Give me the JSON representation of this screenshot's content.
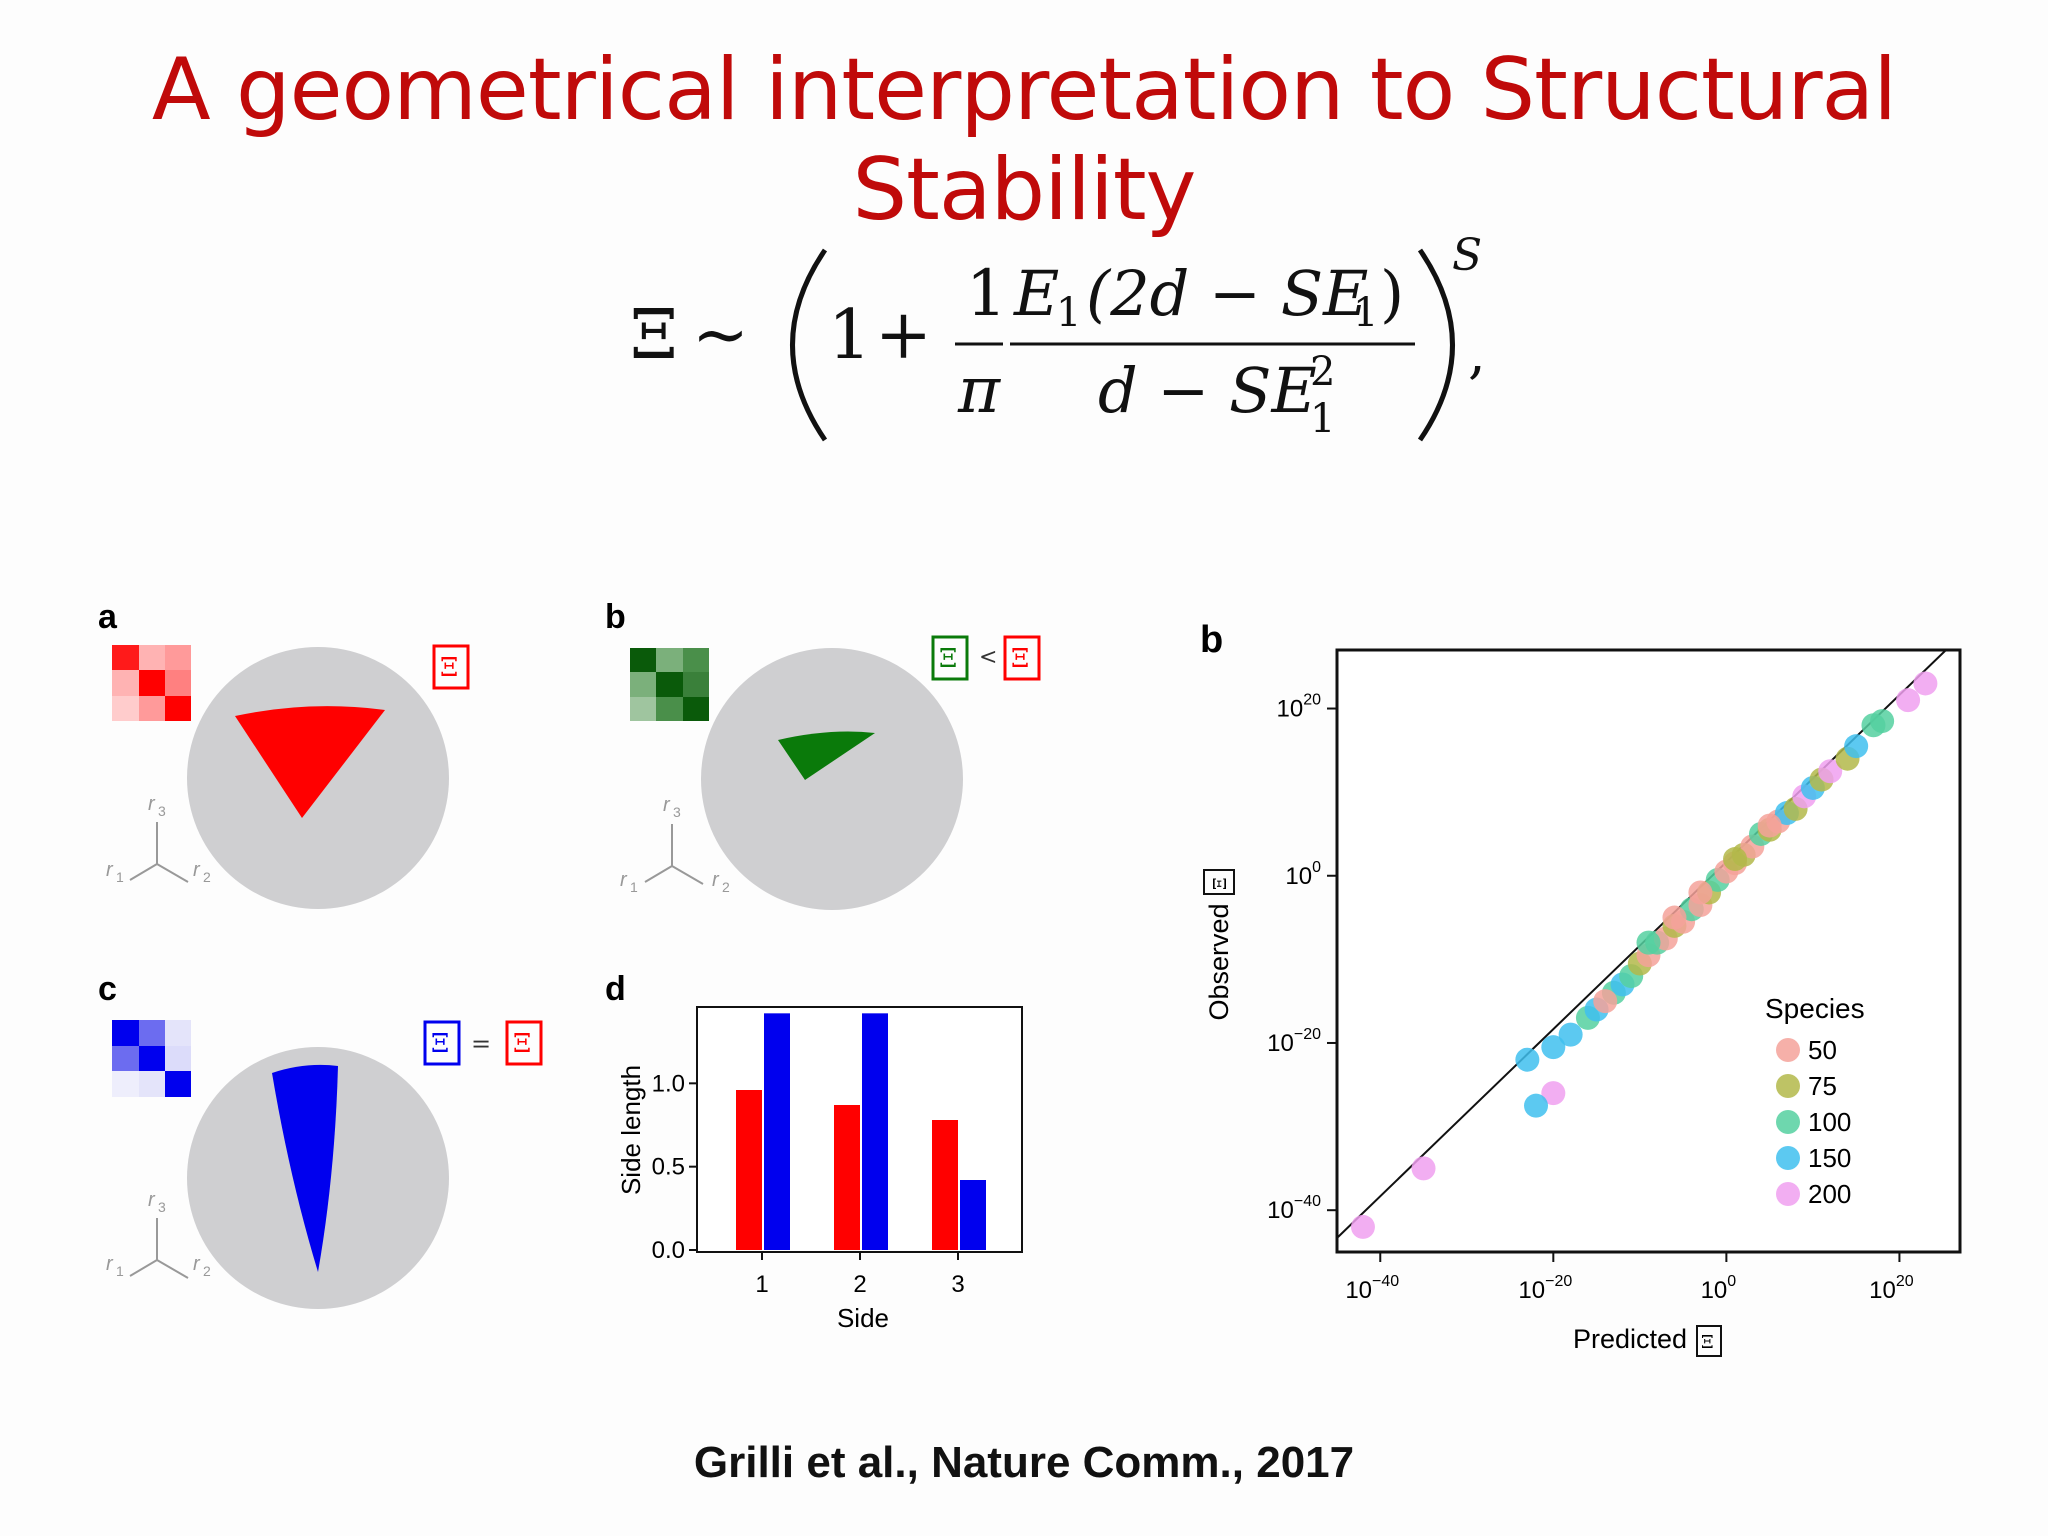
{
  "slide": {
    "title": "A geometrical interpretation to Structural Stability",
    "citation": "Grilli et al., Nature Comm., 2017"
  },
  "formula": {
    "xi": "Ξ",
    "sim": "~",
    "one": "1",
    "plus": "+",
    "frac1_num": "1",
    "frac1_den": "π",
    "frac2_num_a": "E",
    "frac2_num_a_sub": "1",
    "frac2_num_b": "(2d − SE",
    "frac2_num_b_sub": "1",
    "frac2_num_close": ")",
    "frac2_den_a": "d − SE",
    "frac2_den_sup": "2",
    "frac2_den_sub": "1",
    "exponent": "S",
    "comma": ","
  },
  "panels": {
    "a": {
      "label": "a",
      "right_symbol": "Ξ",
      "color": "#ff0000"
    },
    "b": {
      "label": "b",
      "left_symbol": "Ξ",
      "op": "<",
      "right_symbol": "Ξ",
      "color": "#0a7a0a"
    },
    "c": {
      "label": "c",
      "left_symbol": "Ξ",
      "op": "=",
      "right_symbol": "Ξ",
      "color": "#0000ee"
    },
    "d": {
      "label": "d"
    },
    "scatter": {
      "label": "b"
    },
    "axes_small": {
      "r1": "r",
      "r1_sub": "1",
      "r2": "r",
      "r2_sub": "2",
      "r3": "r",
      "r3_sub": "3"
    }
  },
  "chart_data": [
    {
      "type": "bar",
      "panel": "d",
      "xlabel": "Side",
      "ylabel": "Side length",
      "categories": [
        "1",
        "2",
        "3"
      ],
      "yticks": [
        "0.0",
        "0.5",
        "1.0"
      ],
      "ylim": [
        0,
        1.5
      ],
      "series": [
        {
          "values": [
            0.96,
            0.87,
            0.78
          ],
          "color": "#ff0000"
        },
        {
          "values": [
            1.42,
            1.42,
            0.42
          ],
          "color": "#0000ee"
        }
      ]
    },
    {
      "type": "scatter",
      "panel": "b",
      "xlabel": "Predicted",
      "xlabel_symbol": "Ξ",
      "ylabel": "Observed",
      "ylabel_symbol": "Ξ",
      "xscale": "log",
      "yscale": "log",
      "xticks": [
        {
          "base": "10",
          "exp": "−40"
        },
        {
          "base": "10",
          "exp": "−20"
        },
        {
          "base": "10",
          "exp": "0"
        },
        {
          "base": "10",
          "exp": "20"
        }
      ],
      "yticks": [
        {
          "base": "10",
          "exp": "20"
        },
        {
          "base": "10",
          "exp": "0"
        },
        {
          "base": "10",
          "exp": "−20"
        },
        {
          "base": "10",
          "exp": "−40"
        }
      ],
      "xlim_log10": [
        -45,
        27
      ],
      "ylim_log10": [
        -45,
        27
      ],
      "legend": {
        "title": "Species",
        "placement": "bottom-right",
        "entries": [
          {
            "label": "50",
            "color": "#f4a29a"
          },
          {
            "label": "75",
            "color": "#b3b84a"
          },
          {
            "label": "100",
            "color": "#55d0a0"
          },
          {
            "label": "150",
            "color": "#40c0ee"
          },
          {
            "label": "200",
            "color": "#f0a0f0"
          }
        ]
      },
      "points_log10": [
        {
          "x": -42,
          "y": -42,
          "g": 4
        },
        {
          "x": -35,
          "y": -35,
          "g": 4
        },
        {
          "x": -20,
          "y": -26,
          "g": 4
        },
        {
          "x": -22,
          "y": -27.5,
          "g": 3
        },
        {
          "x": -23,
          "y": -22,
          "g": 3
        },
        {
          "x": -20,
          "y": -20.5,
          "g": 3
        },
        {
          "x": -18,
          "y": -19,
          "g": 3
        },
        {
          "x": -16,
          "y": -17,
          "g": 2
        },
        {
          "x": -15,
          "y": -16,
          "g": 3
        },
        {
          "x": -13,
          "y": -14,
          "g": 2
        },
        {
          "x": -12,
          "y": -13,
          "g": 3
        },
        {
          "x": -11,
          "y": -12,
          "g": 2
        },
        {
          "x": -10,
          "y": -10.5,
          "g": 1
        },
        {
          "x": -9,
          "y": -9.5,
          "g": 0
        },
        {
          "x": -8,
          "y": -8,
          "g": 2
        },
        {
          "x": -7,
          "y": -7.5,
          "g": 0
        },
        {
          "x": -6,
          "y": -6,
          "g": 1
        },
        {
          "x": -5,
          "y": -5.5,
          "g": 0
        },
        {
          "x": -4,
          "y": -4,
          "g": 2
        },
        {
          "x": -3,
          "y": -3.5,
          "g": 0
        },
        {
          "x": -2,
          "y": -2,
          "g": 1
        },
        {
          "x": -1,
          "y": -0.5,
          "g": 2
        },
        {
          "x": 0,
          "y": 0.5,
          "g": 0
        },
        {
          "x": 1,
          "y": 1.5,
          "g": 0
        },
        {
          "x": 2,
          "y": 2.5,
          "g": 1
        },
        {
          "x": 3,
          "y": 3.5,
          "g": 0
        },
        {
          "x": 4,
          "y": 5,
          "g": 2
        },
        {
          "x": 5,
          "y": 5.5,
          "g": 1
        },
        {
          "x": 6,
          "y": 6.5,
          "g": 0
        },
        {
          "x": 7,
          "y": 7.5,
          "g": 3
        },
        {
          "x": 8,
          "y": 8,
          "g": 1
        },
        {
          "x": 9,
          "y": 9.5,
          "g": 4
        },
        {
          "x": 10,
          "y": 10.5,
          "g": 3
        },
        {
          "x": 11,
          "y": 11.5,
          "g": 1
        },
        {
          "x": 12,
          "y": 12.5,
          "g": 4
        },
        {
          "x": 14,
          "y": 14,
          "g": 1
        },
        {
          "x": 15,
          "y": 15.5,
          "g": 3
        },
        {
          "x": 17,
          "y": 18,
          "g": 2
        },
        {
          "x": 18,
          "y": 18.5,
          "g": 2
        },
        {
          "x": 21,
          "y": 21,
          "g": 4
        },
        {
          "x": 23,
          "y": 23,
          "g": 4
        },
        {
          "x": -14,
          "y": -15,
          "g": 0
        },
        {
          "x": -6,
          "y": -5,
          "g": 0
        },
        {
          "x": -3,
          "y": -2,
          "g": 0
        },
        {
          "x": 1,
          "y": 2,
          "g": 1
        },
        {
          "x": 5,
          "y": 6,
          "g": 0
        },
        {
          "x": -9,
          "y": -8,
          "g": 2
        }
      ]
    }
  ]
}
